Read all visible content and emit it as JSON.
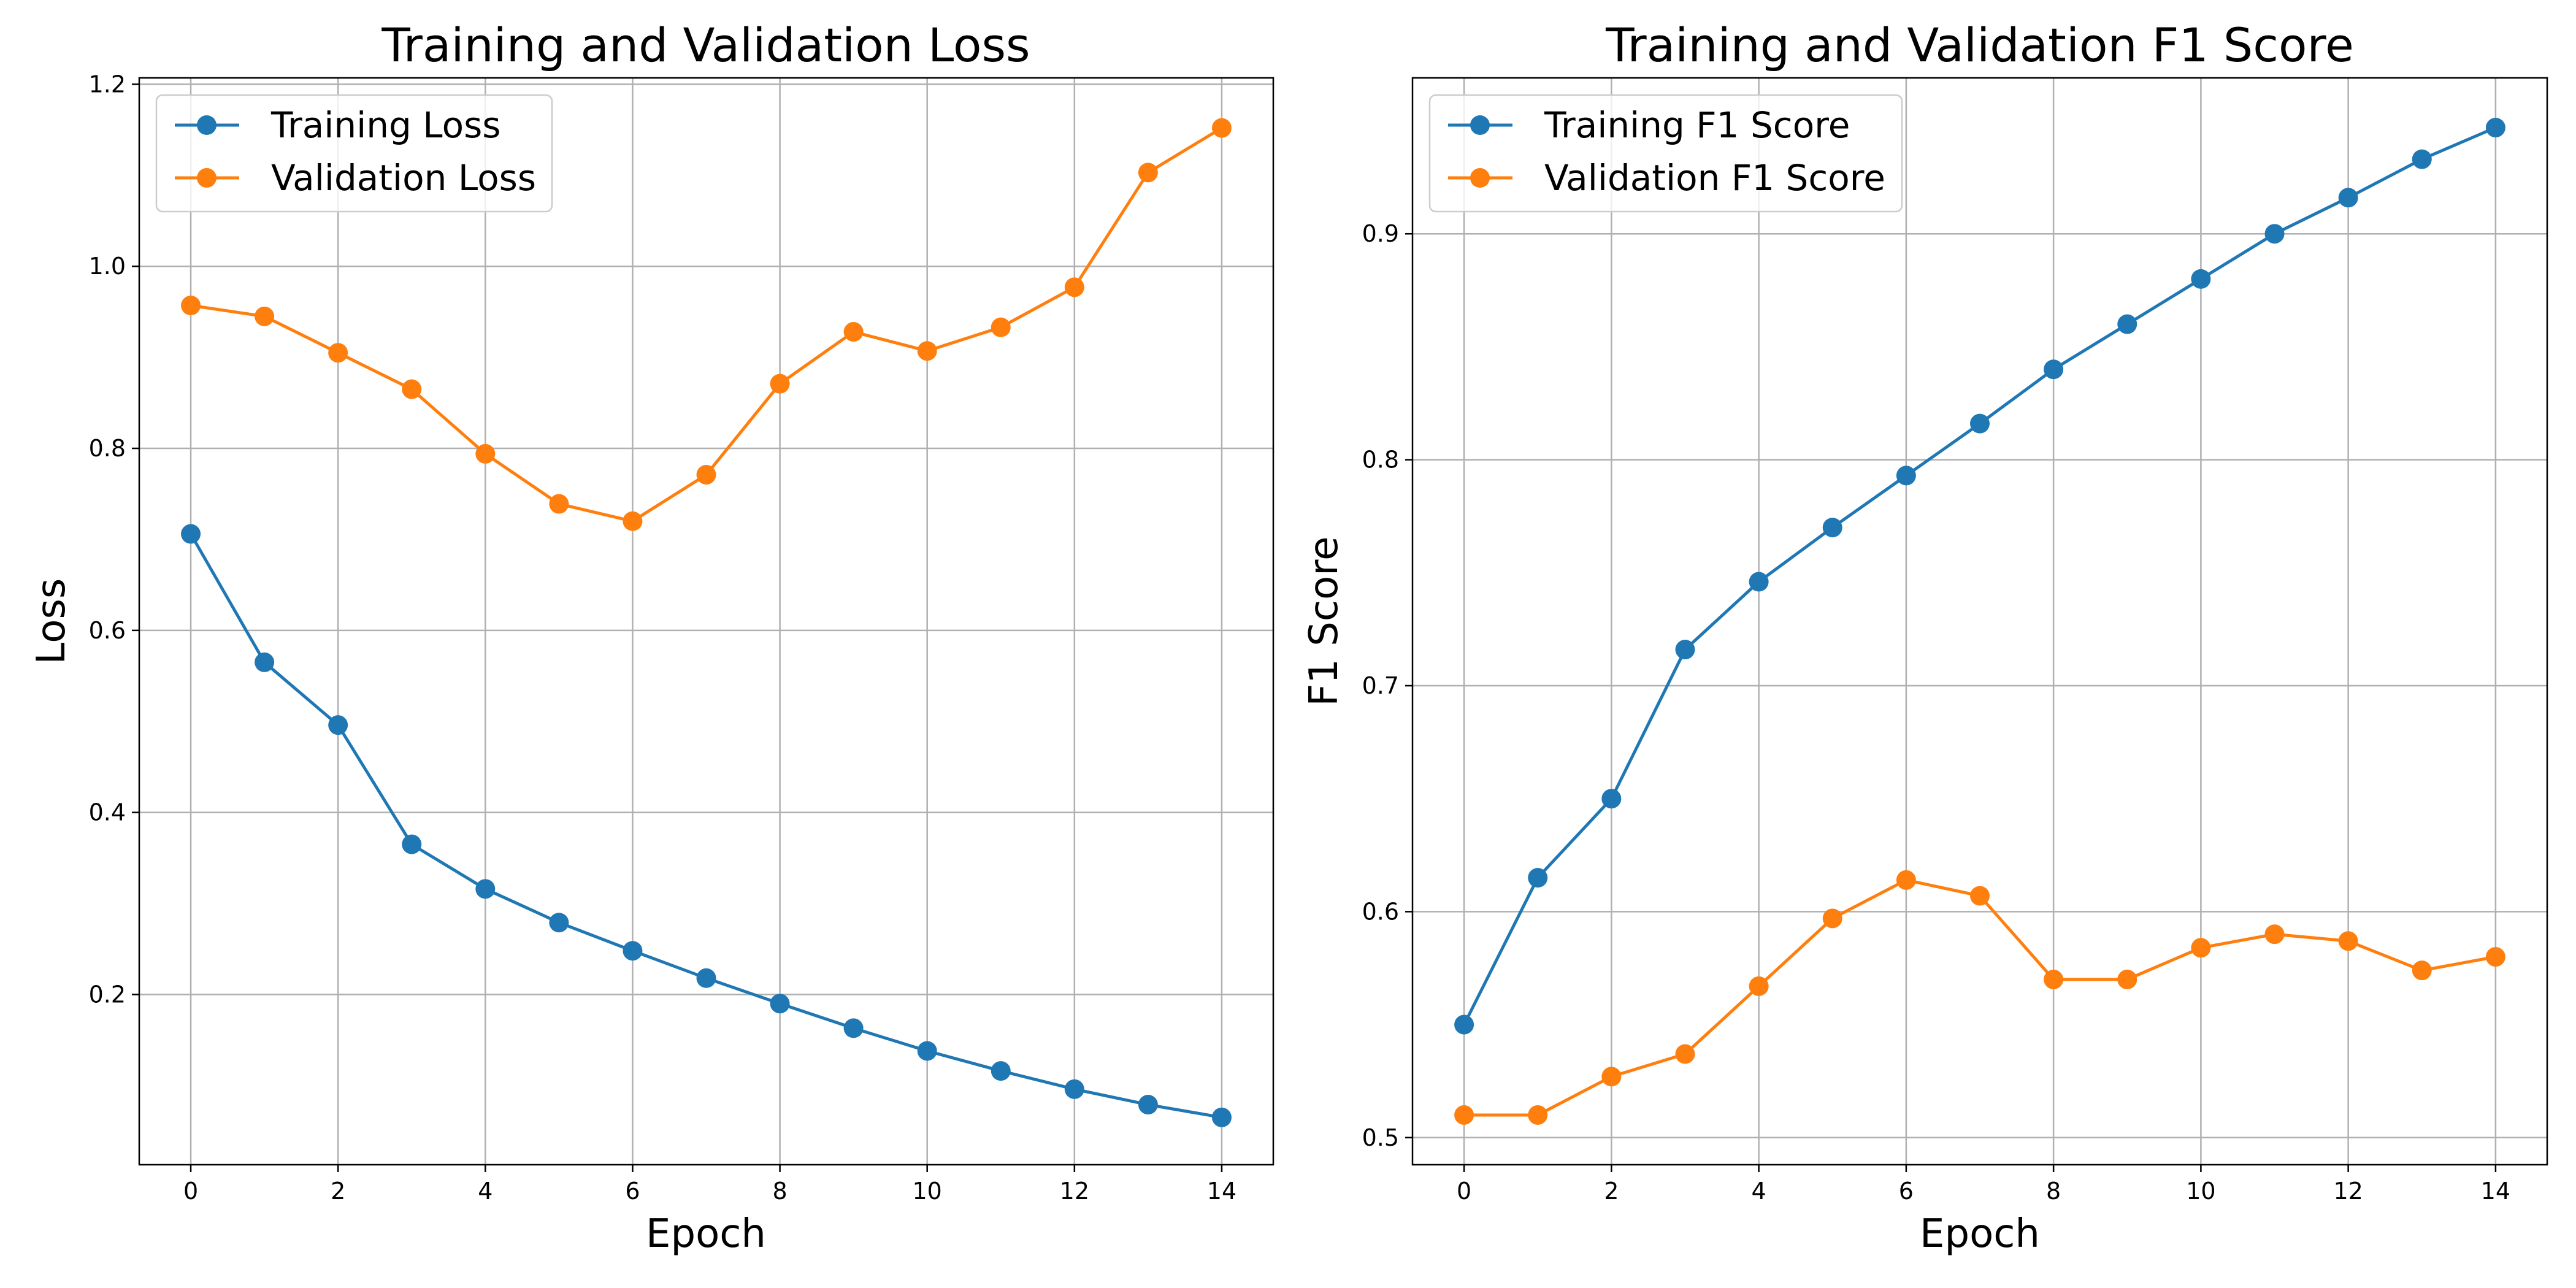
{
  "chart_data": [
    {
      "type": "line",
      "title": "Training and Validation Loss",
      "xlabel": "Epoch",
      "ylabel": "Loss",
      "x": [
        0,
        1,
        2,
        3,
        4,
        5,
        6,
        7,
        8,
        9,
        10,
        11,
        12,
        13,
        14
      ],
      "xlim": [
        -0.7,
        14.7
      ],
      "ylim": [
        0.013,
        1.207
      ],
      "xticks": [
        0,
        2,
        4,
        6,
        8,
        10,
        12,
        14
      ],
      "yticks": [
        0.2,
        0.4,
        0.6,
        0.8,
        1.0,
        1.2
      ],
      "xtick_labels": [
        "0",
        "2",
        "4",
        "6",
        "8",
        "10",
        "12",
        "14"
      ],
      "ytick_labels": [
        "0.2",
        "0.4",
        "0.6",
        "0.8",
        "1.0",
        "1.2"
      ],
      "grid": true,
      "legend_position": "top-left",
      "series": [
        {
          "name": "Training Loss",
          "color": "#1f77b4",
          "marker": "circle",
          "values": [
            0.706,
            0.565,
            0.496,
            0.365,
            0.316,
            0.279,
            0.248,
            0.218,
            0.19,
            0.163,
            0.138,
            0.116,
            0.096,
            0.079,
            0.065
          ]
        },
        {
          "name": "Validation Loss",
          "color": "#ff7f0e",
          "marker": "circle",
          "values": [
            0.957,
            0.945,
            0.905,
            0.865,
            0.794,
            0.739,
            0.72,
            0.771,
            0.871,
            0.928,
            0.907,
            0.933,
            0.977,
            1.103,
            1.152
          ]
        }
      ]
    },
    {
      "type": "line",
      "title": "Training and Validation F1 Score",
      "xlabel": "Epoch",
      "ylabel": "F1 Score",
      "x": [
        0,
        1,
        2,
        3,
        4,
        5,
        6,
        7,
        8,
        9,
        10,
        11,
        12,
        13,
        14
      ],
      "xlim": [
        -0.7,
        14.7
      ],
      "ylim": [
        0.488,
        0.969
      ],
      "xticks": [
        0,
        2,
        4,
        6,
        8,
        10,
        12,
        14
      ],
      "yticks": [
        0.5,
        0.6,
        0.7,
        0.8,
        0.9
      ],
      "xtick_labels": [
        "0",
        "2",
        "4",
        "6",
        "8",
        "10",
        "12",
        "14"
      ],
      "ytick_labels": [
        "0.5",
        "0.6",
        "0.7",
        "0.8",
        "0.9"
      ],
      "grid": true,
      "legend_position": "top-left",
      "series": [
        {
          "name": "Training F1 Score",
          "color": "#1f77b4",
          "marker": "circle",
          "values": [
            0.55,
            0.615,
            0.65,
            0.716,
            0.746,
            0.77,
            0.793,
            0.816,
            0.84,
            0.86,
            0.88,
            0.9,
            0.916,
            0.933,
            0.947
          ]
        },
        {
          "name": "Validation F1 Score",
          "color": "#ff7f0e",
          "marker": "circle",
          "values": [
            0.51,
            0.51,
            0.527,
            0.537,
            0.567,
            0.597,
            0.614,
            0.607,
            0.57,
            0.57,
            0.584,
            0.59,
            0.587,
            0.574,
            0.58
          ]
        }
      ]
    }
  ]
}
